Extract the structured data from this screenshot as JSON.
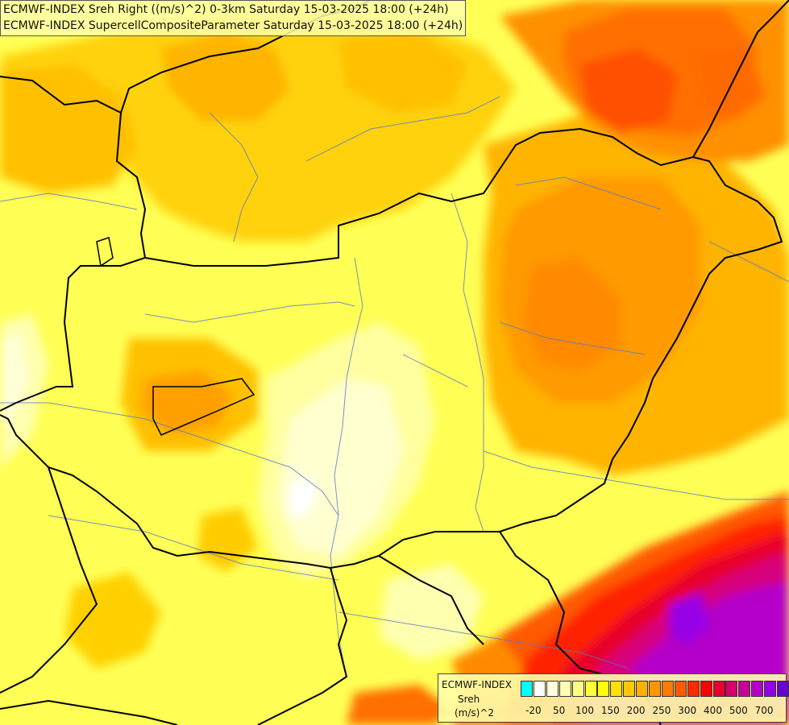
{
  "titles": {
    "line1": "ECMWF-INDEX Sreh Right ((m/s)^2) 0-3km Saturday 15-03-2025 18:00 (+24h)",
    "line2": "ECMWF-INDEX SupercellCompositeParameter Saturday 15-03-2025 18:00 (+24h)"
  },
  "legend": {
    "source": "ECMWF-INDEX",
    "variable": "Sreh",
    "unit": "(m/s)^2",
    "colors": [
      "#00ffff",
      "#ffffff",
      "#fffde0",
      "#ffffb3",
      "#ffff80",
      "#ffff33",
      "#ffff00",
      "#ffe000",
      "#ffc800",
      "#ffb000",
      "#ff9600",
      "#ff7a00",
      "#ff5a00",
      "#ff2a00",
      "#ff0000",
      "#e8002c",
      "#d60070",
      "#c8009a",
      "#b400c8",
      "#9600e6",
      "#6a00d0",
      "#3a00b0",
      "#000080"
    ],
    "ticks": [
      "-20",
      "50",
      "100",
      "150",
      "200",
      "250",
      "300",
      "400",
      "500",
      "700"
    ]
  }
}
